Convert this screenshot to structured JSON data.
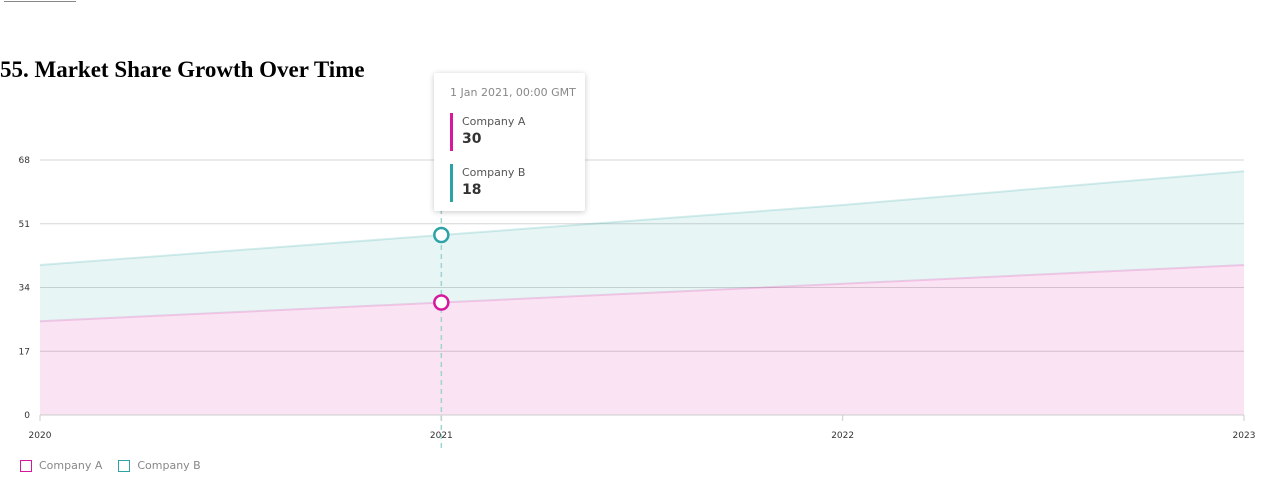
{
  "page": {
    "title": "55. Market Share Growth Over Time"
  },
  "colors": {
    "company_a": "#d6189c",
    "company_b": "#2ca3a5"
  },
  "chart_data": {
    "type": "area",
    "stacked": true,
    "x": [
      "2020",
      "2021",
      "2022",
      "2023"
    ],
    "xticks": [
      "2020",
      "2021",
      "2022",
      "2023"
    ],
    "yticks": [
      "0",
      "17",
      "34",
      "51",
      "68"
    ],
    "ylim": [
      0,
      68
    ],
    "grid": true,
    "legend": "bottom-left",
    "series": [
      {
        "name": "Company A",
        "values": [
          25,
          30,
          35,
          40
        ]
      },
      {
        "name": "Company B",
        "values": [
          15,
          18,
          21,
          25
        ]
      }
    ]
  },
  "tooltip": {
    "header": "1 Jan 2021, 00:00 GMT",
    "index": 1,
    "items": [
      {
        "name": "Company A",
        "value": "30"
      },
      {
        "name": "Company B",
        "value": "18"
      }
    ]
  }
}
